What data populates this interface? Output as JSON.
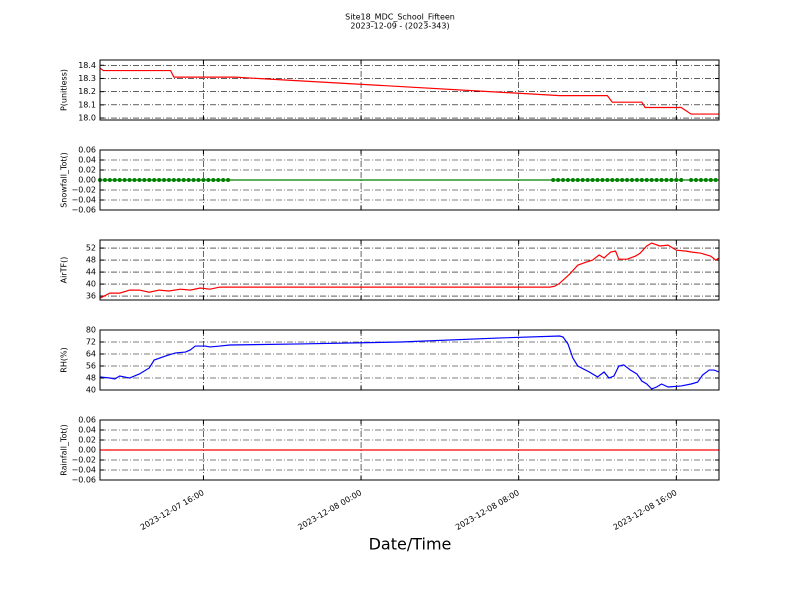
{
  "chart_data": [
    {
      "type": "line",
      "title": "Site18_MDC_School_Fifteen",
      "subtitle": "2023-12-09 - (2023-343)",
      "ylabel": "P(unitless)",
      "color": "#ff0000",
      "grid": true,
      "x": [
        "2023-12-07 10:45",
        "2023-12-07 10:55",
        "2023-12-07 14:20",
        "2023-12-07 14:30",
        "2023-12-07 17:35",
        "2023-12-08 10:05",
        "2023-12-08 12:30",
        "2023-12-08 12:45",
        "2023-12-08 14:15",
        "2023-12-08 14:25",
        "2023-12-08 16:15",
        "2023-12-08 16:45",
        "2023-12-08 18:10"
      ],
      "values": [
        18.38,
        18.36,
        18.36,
        18.31,
        18.31,
        18.17,
        18.17,
        18.12,
        18.12,
        18.08,
        18.08,
        18.03,
        18.03
      ],
      "xlim": [
        "2023-12-07 10:45",
        "2023-12-08 18:10"
      ],
      "xticks": [
        "2023-12-07 16:00",
        "2023-12-08 00:00",
        "2023-12-08 08:00",
        "2023-12-08 16:00"
      ],
      "ylim": [
        17.985,
        18.44
      ],
      "yticks": [
        {
          "value": 18.0,
          "label": "18.0"
        },
        18.1,
        18.2,
        18.3,
        18.4
      ]
    },
    {
      "type": "line",
      "ylabel": "Snowfall_Tot()",
      "color": "#008000",
      "marker": true,
      "grid": true,
      "x": [
        "2023-12-07 10:45",
        "2023-12-07 11:00",
        "2023-12-07 11:15",
        "2023-12-07 11:30",
        "2023-12-07 11:45",
        "2023-12-07 12:00",
        "2023-12-07 12:15",
        "2023-12-07 12:30",
        "2023-12-07 12:45",
        "2023-12-07 13:00",
        "2023-12-07 13:15",
        "2023-12-07 13:30",
        "2023-12-07 13:45",
        "2023-12-07 14:00",
        "2023-12-07 14:15",
        "2023-12-07 14:30",
        "2023-12-07 14:45",
        "2023-12-07 15:00",
        "2023-12-07 15:15",
        "2023-12-07 15:30",
        "2023-12-07 15:45",
        "2023-12-07 16:00",
        "2023-12-07 16:15",
        "2023-12-07 16:30",
        "2023-12-07 16:45",
        "2023-12-07 17:00",
        "2023-12-07 17:15",
        "2023-12-08 09:45",
        "2023-12-08 10:00",
        "2023-12-08 10:15",
        "2023-12-08 10:30",
        "2023-12-08 10:45",
        "2023-12-08 11:00",
        "2023-12-08 11:15",
        "2023-12-08 11:30",
        "2023-12-08 11:45",
        "2023-12-08 12:00",
        "2023-12-08 12:15",
        "2023-12-08 12:30",
        "2023-12-08 12:45",
        "2023-12-08 13:00",
        "2023-12-08 13:15",
        "2023-12-08 13:30",
        "2023-12-08 13:45",
        "2023-12-08 14:00",
        "2023-12-08 14:15",
        "2023-12-08 14:30",
        "2023-12-08 14:45",
        "2023-12-08 15:00",
        "2023-12-08 15:15",
        "2023-12-08 15:30",
        "2023-12-08 15:45",
        "2023-12-08 16:00",
        "2023-12-08 16:15",
        "2023-12-08 16:45",
        "2023-12-08 17:00",
        "2023-12-08 17:15",
        "2023-12-08 17:30",
        "2023-12-08 17:45",
        "2023-12-08 18:00"
      ],
      "values": [
        0,
        0,
        0,
        0,
        0,
        0,
        0,
        0,
        0,
        0,
        0,
        0,
        0,
        0,
        0,
        0,
        0,
        0,
        0,
        0,
        0,
        0,
        0,
        0,
        0,
        0,
        0,
        0,
        0,
        0,
        0,
        0,
        0,
        0,
        0,
        0,
        0,
        0,
        0,
        0,
        0,
        0,
        0,
        0,
        0,
        0,
        0,
        0,
        0,
        0,
        0,
        0,
        0,
        0,
        0,
        0,
        0,
        0,
        0,
        0
      ],
      "xlim": [
        "2023-12-07 10:45",
        "2023-12-08 18:10"
      ],
      "xticks": [
        "2023-12-07 16:00",
        "2023-12-08 00:00",
        "2023-12-08 08:00",
        "2023-12-08 16:00"
      ],
      "ylim": [
        -0.06,
        0.06
      ],
      "yticks": [
        {
          "value": -0.06,
          "label": "−0.06"
        },
        {
          "value": -0.04,
          "label": "−0.04"
        },
        {
          "value": -0.02,
          "label": "−0.02"
        },
        {
          "value": 0,
          "label": "0.00"
        },
        0.02,
        0.04,
        0.06
      ]
    },
    {
      "type": "line",
      "ylabel": "AirTF()",
      "color": "#ff0000",
      "grid": true,
      "x": [
        "2023-12-07 10:45",
        "2023-12-07 11:15",
        "2023-12-07 11:45",
        "2023-12-07 12:15",
        "2023-12-07 12:45",
        "2023-12-07 13:15",
        "2023-12-07 13:45",
        "2023-12-07 14:15",
        "2023-12-07 14:50",
        "2023-12-07 15:20",
        "2023-12-07 15:50",
        "2023-12-07 16:20",
        "2023-12-07 16:50",
        "2023-12-07 17:50",
        "2023-12-08 09:35",
        "2023-12-08 09:50",
        "2023-12-08 10:05",
        "2023-12-08 10:35",
        "2023-12-08 11:00",
        "2023-12-08 11:25",
        "2023-12-08 11:45",
        "2023-12-08 12:05",
        "2023-12-08 12:20",
        "2023-12-08 12:40",
        "2023-12-08 12:55",
        "2023-12-08 13:05",
        "2023-12-08 13:30",
        "2023-12-08 13:55",
        "2023-12-08 14:10",
        "2023-12-08 14:30",
        "2023-12-08 14:45",
        "2023-12-08 15:10",
        "2023-12-08 15:35",
        "2023-12-08 16:00",
        "2023-12-08 16:30",
        "2023-12-08 16:45",
        "2023-12-08 17:15",
        "2023-12-08 17:45",
        "2023-12-08 18:00",
        "2023-12-08 18:10"
      ],
      "values": [
        35.3,
        37,
        37,
        38,
        38,
        37.3,
        38,
        37.7,
        38.3,
        38,
        38.7,
        38.3,
        39,
        39,
        39,
        39.3,
        40.3,
        43.3,
        46.3,
        47.3,
        48,
        49.7,
        48.7,
        50.7,
        51,
        48.3,
        48.3,
        49.3,
        50.3,
        52.7,
        53.7,
        52.7,
        53,
        51.3,
        51,
        50.7,
        50.3,
        49.3,
        48,
        48.7
      ],
      "xlim": [
        "2023-12-07 10:45",
        "2023-12-08 18:10"
      ],
      "xticks": [
        "2023-12-07 16:00",
        "2023-12-08 00:00",
        "2023-12-08 08:00",
        "2023-12-08 16:00"
      ],
      "ylim": [
        34.7,
        54.7
      ],
      "yticks": [
        36,
        40,
        44,
        48,
        52
      ]
    },
    {
      "type": "line",
      "ylabel": "RH(%)",
      "color": "#0000ff",
      "grid": true,
      "x": [
        "2023-12-07 10:45",
        "2023-12-07 11:15",
        "2023-12-07 11:30",
        "2023-12-07 11:45",
        "2023-12-07 12:15",
        "2023-12-07 12:45",
        "2023-12-07 13:15",
        "2023-12-07 13:30",
        "2023-12-07 14:05",
        "2023-12-07 14:35",
        "2023-12-07 15:05",
        "2023-12-07 15:20",
        "2023-12-07 15:35",
        "2023-12-07 16:05",
        "2023-12-07 16:20",
        "2023-12-07 16:50",
        "2023-12-07 17:20",
        "2023-12-07 20:55",
        "2023-12-08 02:00",
        "2023-12-08 07:05",
        "2023-12-08 10:05",
        "2023-12-08 10:15",
        "2023-12-08 10:30",
        "2023-12-08 10:45",
        "2023-12-08 11:00",
        "2023-12-08 11:35",
        "2023-12-08 12:00",
        "2023-12-08 12:20",
        "2023-12-08 12:35",
        "2023-12-08 12:50",
        "2023-12-08 13:05",
        "2023-12-08 13:20",
        "2023-12-08 13:40",
        "2023-12-08 14:00",
        "2023-12-08 14:15",
        "2023-12-08 14:30",
        "2023-12-08 14:45",
        "2023-12-08 15:00",
        "2023-12-08 15:15",
        "2023-12-08 15:35",
        "2023-12-08 16:15",
        "2023-12-08 16:45",
        "2023-12-08 17:05",
        "2023-12-08 17:20",
        "2023-12-08 17:40",
        "2023-12-08 17:55",
        "2023-12-08 18:10"
      ],
      "values": [
        48.7,
        48,
        47.3,
        49.3,
        48,
        50.7,
        54.7,
        60,
        62.7,
        64.7,
        65.3,
        66.7,
        69.3,
        69.3,
        68.7,
        69.3,
        70,
        70.7,
        72,
        74.7,
        76,
        75.3,
        70.7,
        61.3,
        56,
        52,
        48.7,
        52,
        48,
        49.3,
        56,
        56.7,
        53.3,
        50.7,
        46,
        44,
        40.7,
        42,
        44,
        42,
        42.7,
        44,
        45.3,
        50,
        53.3,
        53.3,
        52
      ],
      "xlim": [
        "2023-12-07 10:45",
        "2023-12-08 18:10"
      ],
      "xticks": [
        "2023-12-07 16:00",
        "2023-12-08 00:00",
        "2023-12-08 08:00",
        "2023-12-08 16:00"
      ],
      "ylim": [
        40,
        80
      ],
      "yticks": [
        40,
        48,
        56,
        64,
        72,
        80
      ]
    },
    {
      "type": "line",
      "ylabel": "Rainfall_Tot()",
      "xlabel": "Date/Time",
      "color": "#ff0000",
      "grid": true,
      "x": [
        "2023-12-07 10:45",
        "2023-12-08 18:10"
      ],
      "values": [
        0,
        0
      ],
      "xlim": [
        "2023-12-07 10:45",
        "2023-12-08 18:10"
      ],
      "xticks": [
        "2023-12-07 16:00",
        "2023-12-08 00:00",
        "2023-12-08 08:00",
        "2023-12-08 16:00"
      ],
      "ylim": [
        -0.06,
        0.06
      ],
      "yticks": [
        {
          "value": -0.06,
          "label": "−0.06"
        },
        {
          "value": -0.04,
          "label": "−0.04"
        },
        {
          "value": -0.02,
          "label": "−0.02"
        },
        {
          "value": 0,
          "label": "0.00"
        },
        0.02,
        0.04,
        0.06
      ]
    }
  ]
}
